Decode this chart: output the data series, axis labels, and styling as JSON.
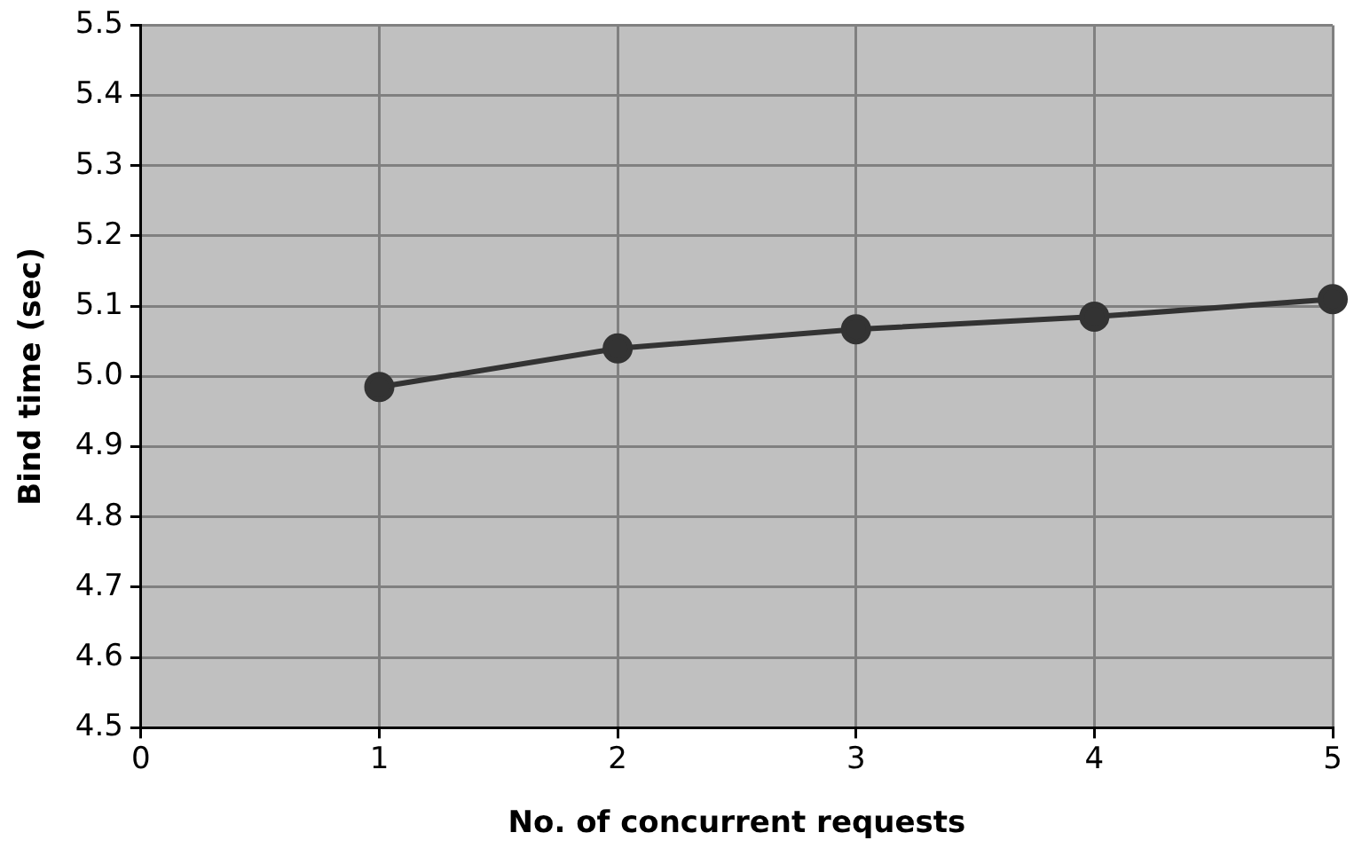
{
  "chart_data": {
    "type": "line",
    "xlabel": "No. of concurrent requests",
    "ylabel": "Bind time (sec)",
    "x": [
      1,
      2,
      3,
      4,
      5
    ],
    "series": [
      {
        "color": "#333333",
        "values": [
          4.985,
          5.04,
          5.067,
          5.085,
          5.11
        ]
      }
    ],
    "xlim": [
      0,
      5
    ],
    "xticks": [
      0,
      1,
      2,
      3,
      4,
      5
    ],
    "ylim": [
      4.5,
      5.5
    ],
    "yticks": [
      4.5,
      4.6,
      4.7,
      4.8,
      4.9,
      {
        "value": 5,
        "label": "5.0"
      },
      5.1,
      5.2,
      5.3,
      5.4,
      5.5
    ],
    "grid": true,
    "legend": false,
    "marker": "circle",
    "line_style": "solid"
  }
}
